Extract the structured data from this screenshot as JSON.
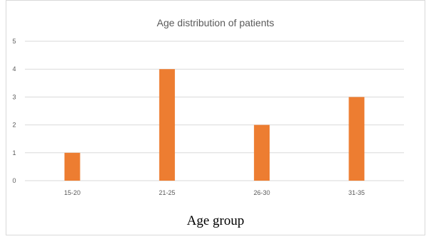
{
  "chart_data": {
    "type": "bar",
    "title": "Age distribution of patients",
    "xlabel": "Age group",
    "ylabel": "",
    "categories": [
      "15-20",
      "21-25",
      "26-30",
      "31-35"
    ],
    "values": [
      1,
      4,
      2,
      3
    ],
    "ylim": [
      0,
      5
    ],
    "yticks": [
      0,
      1,
      2,
      3,
      4,
      5
    ],
    "grid": true,
    "bar_color": "#ED7D31",
    "grid_color": "#d9d9d9"
  }
}
